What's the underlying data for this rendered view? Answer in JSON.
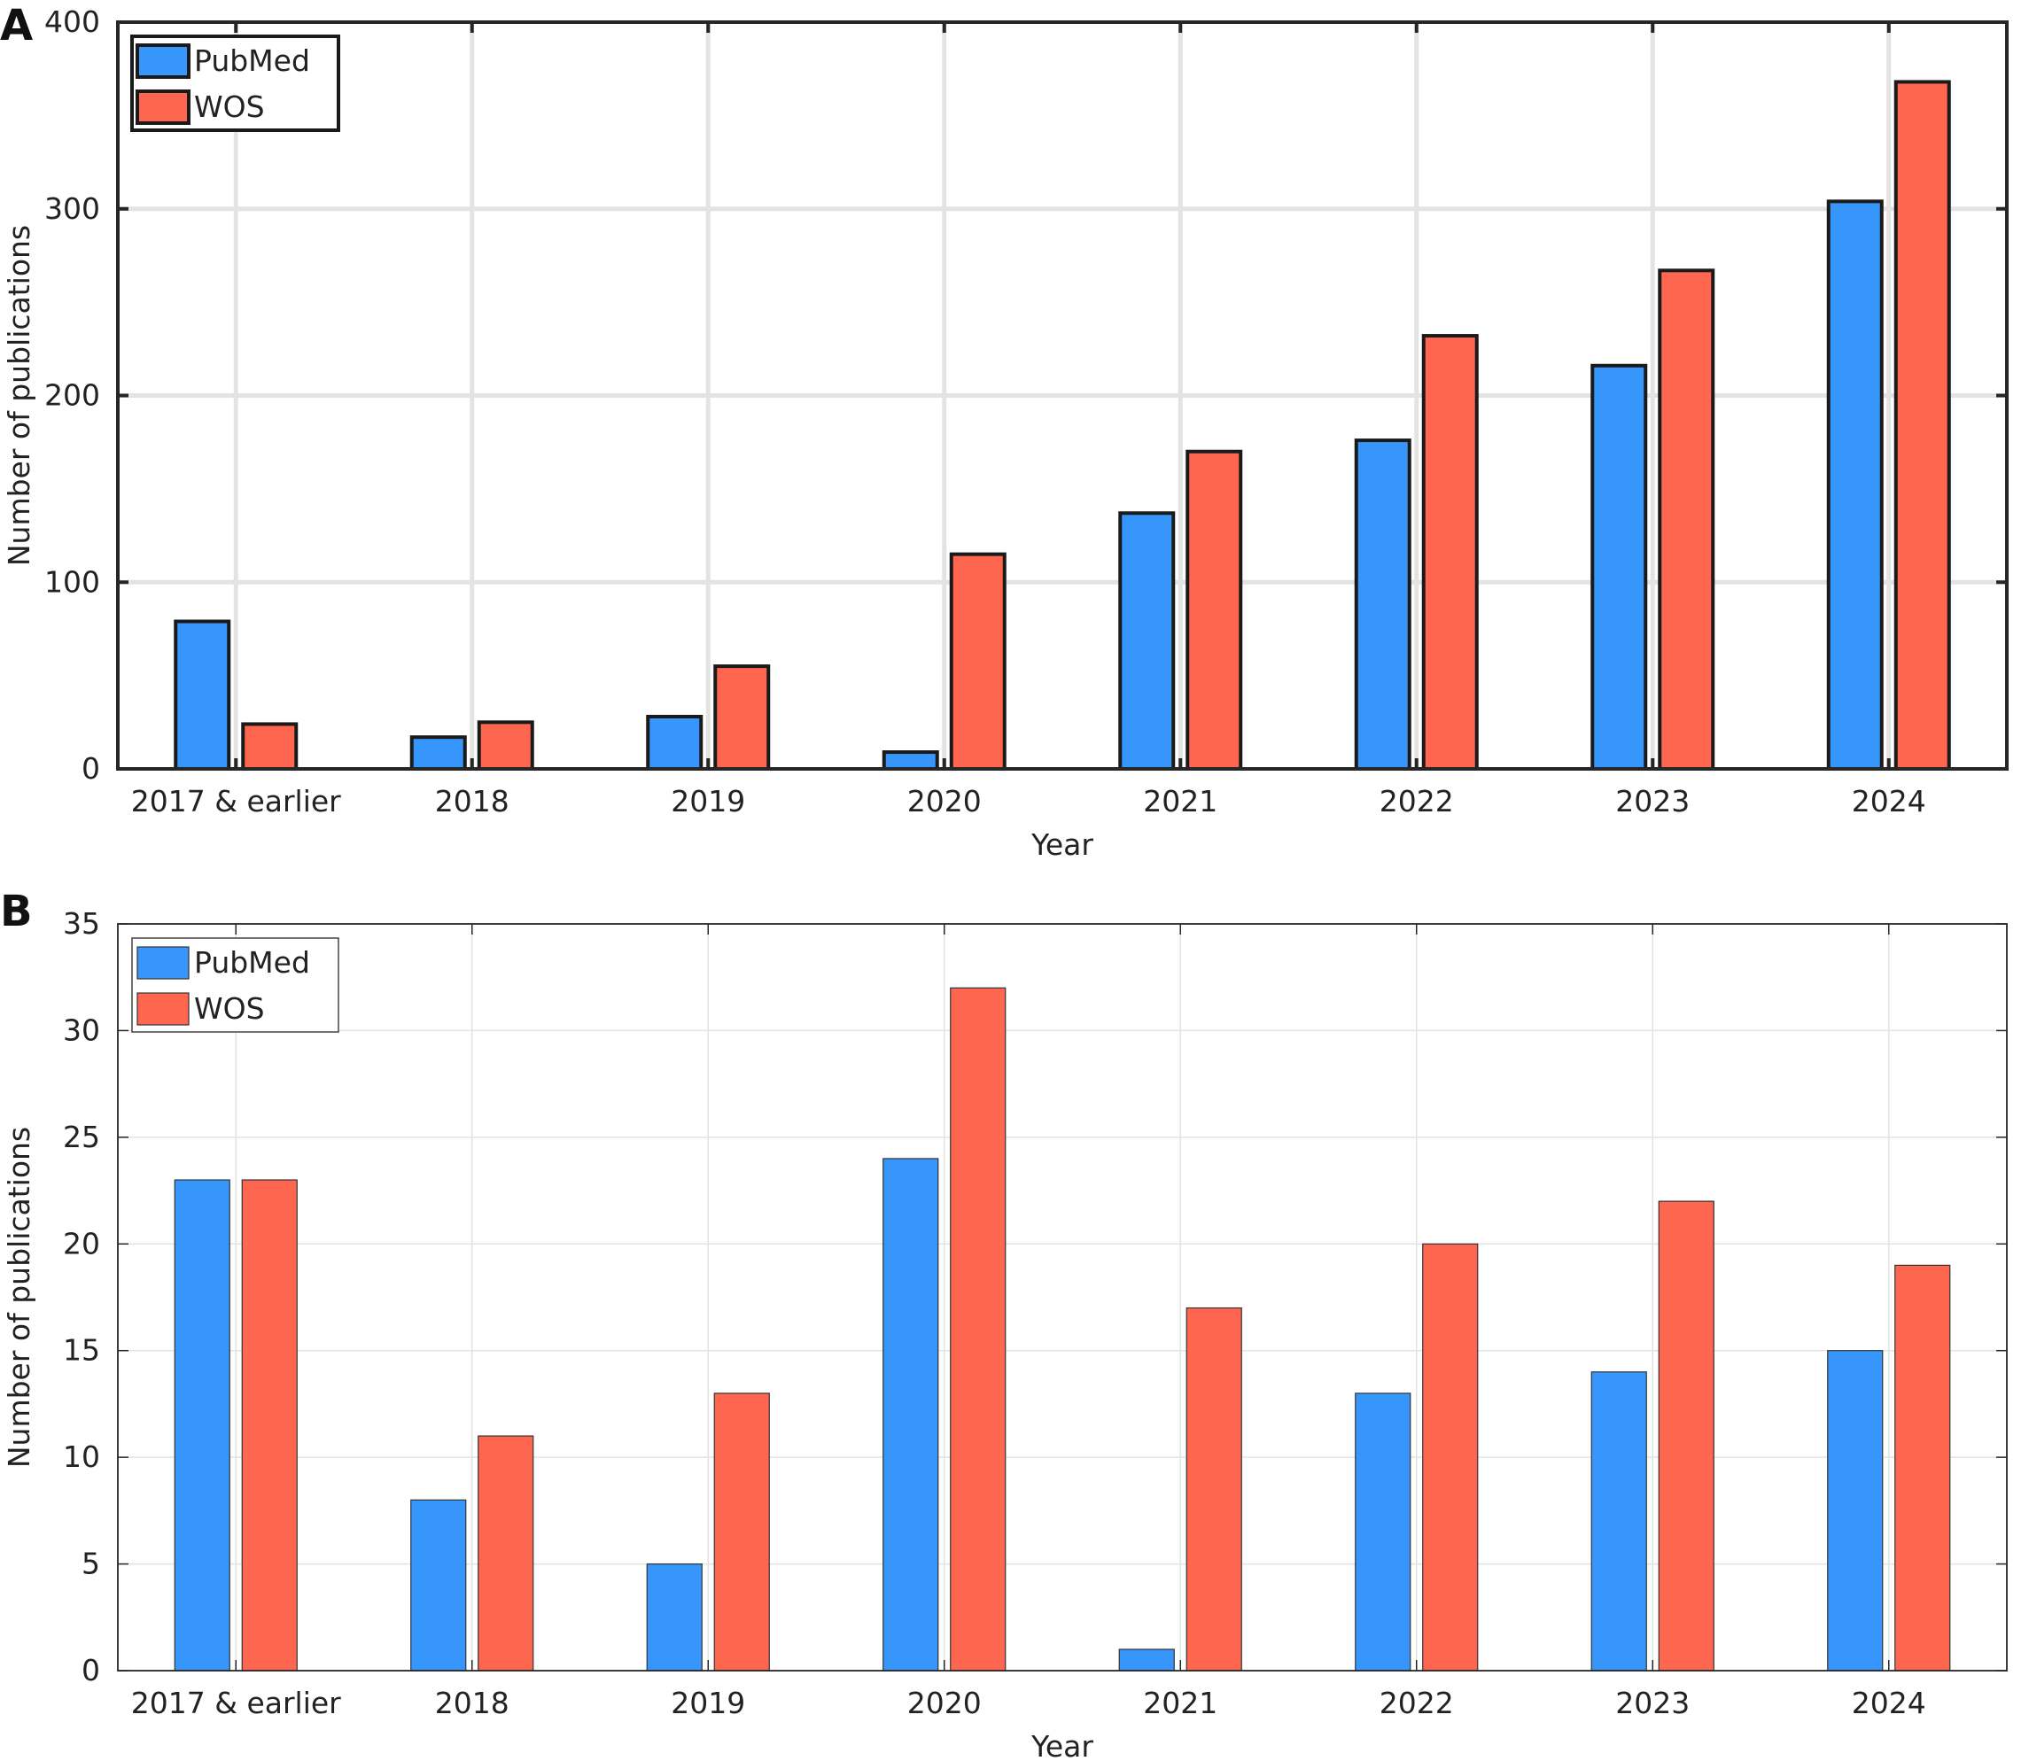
{
  "colors": {
    "pubmed": "#3796fb",
    "wos": "#fe6650",
    "grid": "#e3e3e3",
    "axis": "#262626"
  },
  "chart_data": [
    {
      "panel": "A",
      "type": "bar",
      "categories": [
        "2017 & earlier",
        "2018",
        "2019",
        "2020",
        "2021",
        "2022",
        "2023",
        "2024"
      ],
      "series": [
        {
          "name": "PubMed",
          "values": [
            79,
            17,
            28,
            9,
            137,
            176,
            216,
            304
          ]
        },
        {
          "name": "WOS",
          "values": [
            24,
            25,
            55,
            115,
            170,
            232,
            267,
            368
          ]
        }
      ],
      "xlabel": "Year",
      "ylabel": "Number of publications",
      "ylim": [
        0,
        400
      ],
      "yticks": [
        "0",
        "100",
        "200",
        "300",
        "400"
      ],
      "grid": true,
      "legend_position": "top-left"
    },
    {
      "panel": "B",
      "type": "bar",
      "categories": [
        "2017 & earlier",
        "2018",
        "2019",
        "2020",
        "2021",
        "2022",
        "2023",
        "2024"
      ],
      "series": [
        {
          "name": "PubMed",
          "values": [
            23,
            8,
            5,
            24,
            1,
            13,
            14,
            15
          ]
        },
        {
          "name": "WOS",
          "values": [
            23,
            11,
            13,
            32,
            17,
            20,
            22,
            19
          ]
        }
      ],
      "xlabel": "Year",
      "ylabel": "Number of publications",
      "ylim": [
        0,
        35
      ],
      "yticks": [
        "0",
        "5",
        "10",
        "15",
        "20",
        "25",
        "30",
        "35"
      ],
      "grid": true,
      "legend_position": "top-left"
    }
  ]
}
